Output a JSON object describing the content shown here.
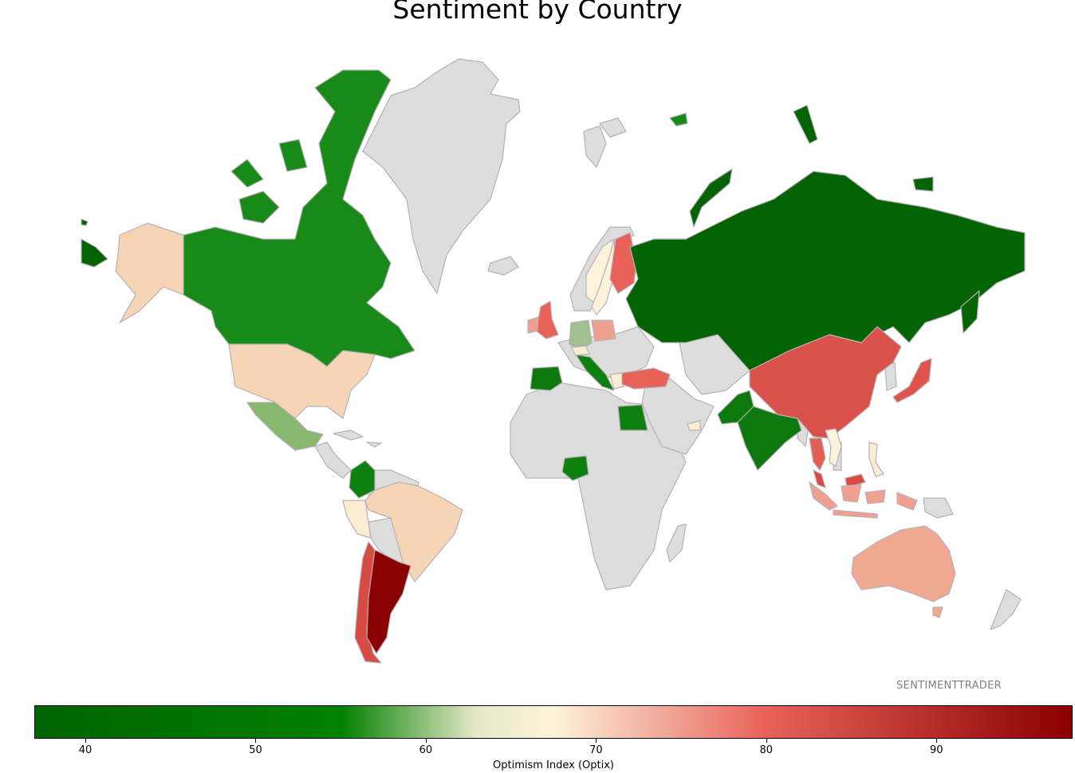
{
  "title": "Sentiment by Country",
  "watermark": "SENTIMENTTRADER",
  "colorbar": {
    "label": "Optimism Index (Optix)",
    "min": 37,
    "max": 98,
    "ticks": [
      "40",
      "50",
      "60",
      "70",
      "80",
      "90"
    ],
    "stops": [
      {
        "value": 37,
        "color": "#006400"
      },
      {
        "value": 55,
        "color": "#008000"
      },
      {
        "value": 63,
        "color": "#e8e8c8"
      },
      {
        "value": 67.5,
        "color": "#fdf3da"
      },
      {
        "value": 80,
        "color": "#e8625a"
      },
      {
        "value": 98,
        "color": "#8b0000"
      }
    ]
  },
  "colors": {
    "no_data": "#dddddd",
    "border": "#b8b0b8"
  },
  "countries": [
    {
      "name": "Canada",
      "color": "#178a17"
    },
    {
      "name": "United States",
      "color": "#f5d5b5"
    },
    {
      "name": "Mexico",
      "color": "#88b870"
    },
    {
      "name": "Colombia",
      "color": "#0d800d"
    },
    {
      "name": "Brazil",
      "color": "#f5d5b5"
    },
    {
      "name": "Peru",
      "color": "#fbecd2"
    },
    {
      "name": "Chile",
      "color": "#d84a44"
    },
    {
      "name": "Argentina",
      "color": "#8b0000"
    },
    {
      "name": "United Kingdom",
      "color": "#e8625a"
    },
    {
      "name": "Ireland",
      "color": "#f0a090"
    },
    {
      "name": "Spain",
      "color": "#0d780d"
    },
    {
      "name": "Italy",
      "color": "#0d800d"
    },
    {
      "name": "Germany",
      "color": "#a0c090"
    },
    {
      "name": "Poland",
      "color": "#f0a090"
    },
    {
      "name": "Switzerland",
      "color": "#fbecd2"
    },
    {
      "name": "Norway",
      "color": "#fdf3da"
    },
    {
      "name": "Sweden",
      "color": "#fdf3da"
    },
    {
      "name": "Finland",
      "color": "#e8625a"
    },
    {
      "name": "Turkey",
      "color": "#e8625a"
    },
    {
      "name": "Greece",
      "color": "#fbecd2"
    },
    {
      "name": "Egypt",
      "color": "#0d800d"
    },
    {
      "name": "Nigeria",
      "color": "#0d800d"
    },
    {
      "name": "Russia",
      "color": "#046404"
    },
    {
      "name": "Pakistan",
      "color": "#0d780d"
    },
    {
      "name": "India",
      "color": "#0d780d"
    },
    {
      "name": "China",
      "color": "#d9514a"
    },
    {
      "name": "Japan",
      "color": "#e0524c"
    },
    {
      "name": "Thailand",
      "color": "#e06058"
    },
    {
      "name": "Vietnam",
      "color": "#fdf3da"
    },
    {
      "name": "Malaysia",
      "color": "#d84a44"
    },
    {
      "name": "Indonesia",
      "color": "#f0a090"
    },
    {
      "name": "Philippines",
      "color": "#fbecd2"
    },
    {
      "name": "Australia",
      "color": "#f0a890"
    },
    {
      "name": "UAE",
      "color": "#fbecd2"
    }
  ]
}
